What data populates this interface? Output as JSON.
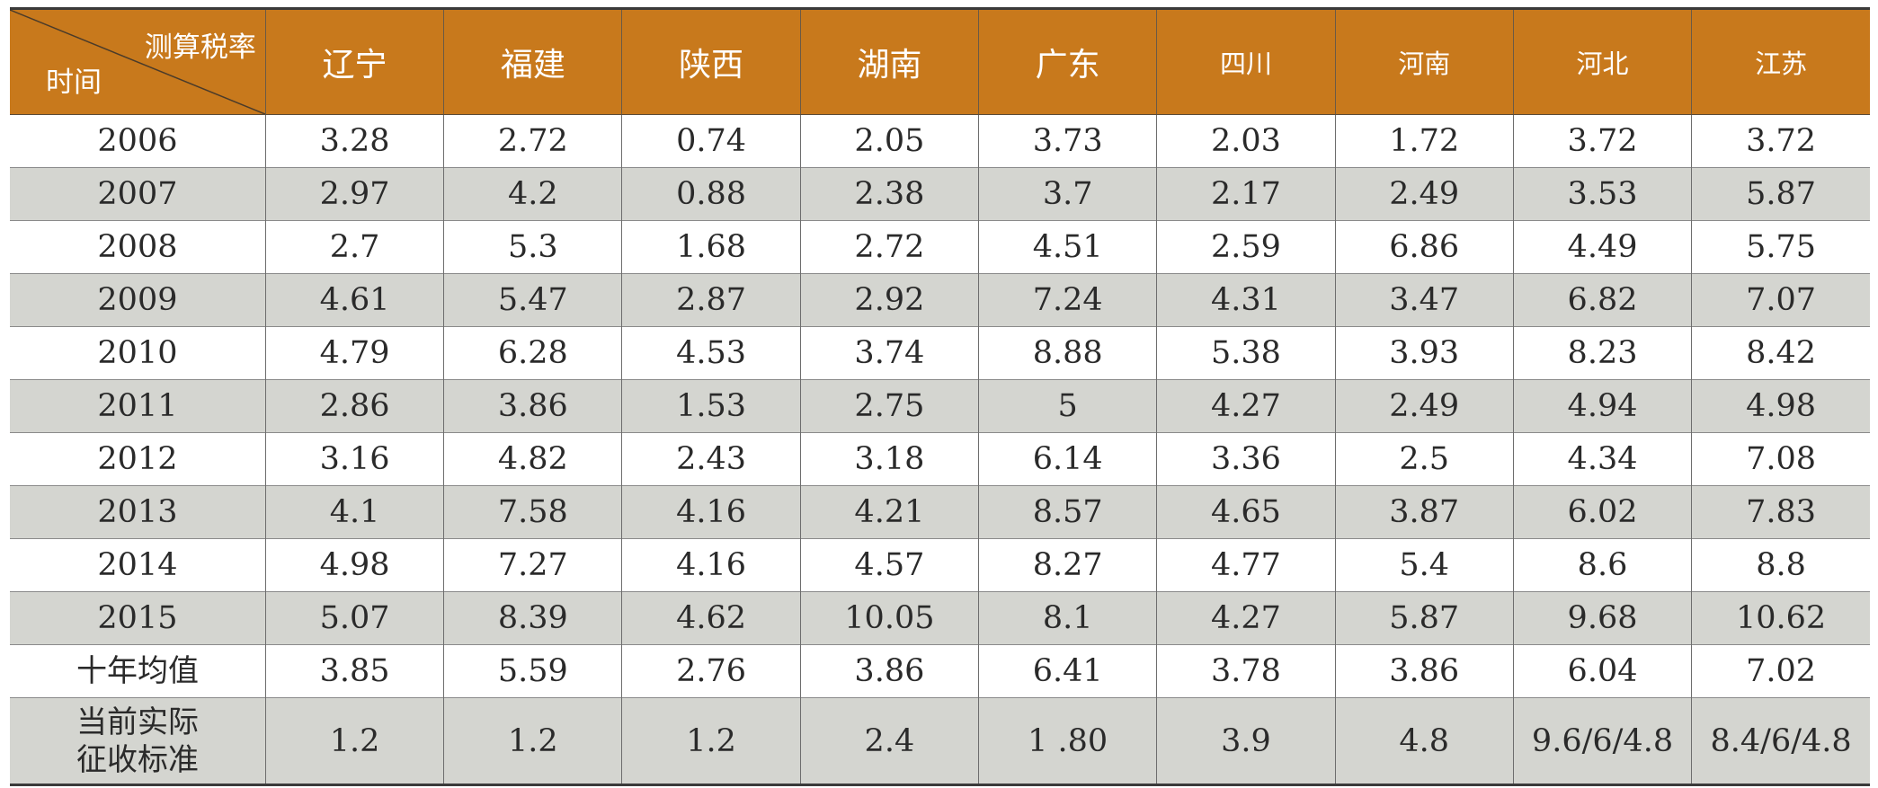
{
  "corner": {
    "top_label": "测算税率",
    "bottom_label": "时间"
  },
  "provinces": [
    "辽宁",
    "福建",
    "陕西",
    "湖南",
    "广东",
    "四川",
    "河南",
    "河北",
    "江苏"
  ],
  "rows": [
    {
      "label": "2006",
      "values": [
        "3.28",
        "2.72",
        "0.74",
        "2.05",
        "3.73",
        "2.03",
        "1.72",
        "3.72",
        "3.72"
      ]
    },
    {
      "label": "2007",
      "values": [
        "2.97",
        "4.2",
        "0.88",
        "2.38",
        "3.7",
        "2.17",
        "2.49",
        "3.53",
        "5.87"
      ]
    },
    {
      "label": "2008",
      "values": [
        "2.7",
        "5.3",
        "1.68",
        "2.72",
        "4.51",
        "2.59",
        "6.86",
        "4.49",
        "5.75"
      ]
    },
    {
      "label": "2009",
      "values": [
        "4.61",
        "5.47",
        "2.87",
        "2.92",
        "7.24",
        "4.31",
        "3.47",
        "6.82",
        "7.07"
      ]
    },
    {
      "label": "2010",
      "values": [
        "4.79",
        "6.28",
        "4.53",
        "3.74",
        "8.88",
        "5.38",
        "3.93",
        "8.23",
        "8.42"
      ]
    },
    {
      "label": "2011",
      "values": [
        "2.86",
        "3.86",
        "1.53",
        "2.75",
        "5",
        "4.27",
        "2.49",
        "4.94",
        "4.98"
      ]
    },
    {
      "label": "2012",
      "values": [
        "3.16",
        "4.82",
        "2.43",
        "3.18",
        "6.14",
        "3.36",
        "2.5",
        "4.34",
        "7.08"
      ]
    },
    {
      "label": "2013",
      "values": [
        "4.1",
        "7.58",
        "4.16",
        "4.21",
        "8.57",
        "4.65",
        "3.87",
        "6.02",
        "7.83"
      ]
    },
    {
      "label": "2014",
      "values": [
        "4.98",
        "7.27",
        "4.16",
        "4.57",
        "8.27",
        "4.77",
        "5.4",
        "8.6",
        "8.8"
      ]
    },
    {
      "label": "2015",
      "values": [
        "5.07",
        "8.39",
        "4.62",
        "10.05",
        "8.1",
        "4.27",
        "5.87",
        "9.68",
        "10.62"
      ]
    }
  ],
  "average_row": {
    "label": "十年均值",
    "values": [
      "3.85",
      "5.59",
      "2.76",
      "3.86",
      "6.41",
      "3.78",
      "3.86",
      "6.04",
      "7.02"
    ]
  },
  "standard_row": {
    "label_line1": "当前实际",
    "label_line2": "征收标准",
    "values": [
      "1.2",
      "1.2",
      "1.2",
      "2.4",
      "1 .80",
      "3.9",
      "4.8",
      "9.6/6/4.8",
      "8.4/6/4.8"
    ]
  },
  "colors": {
    "header_bg": "#c8791c",
    "header_text": "#ffffff",
    "stripe": "#d4d5d0"
  }
}
